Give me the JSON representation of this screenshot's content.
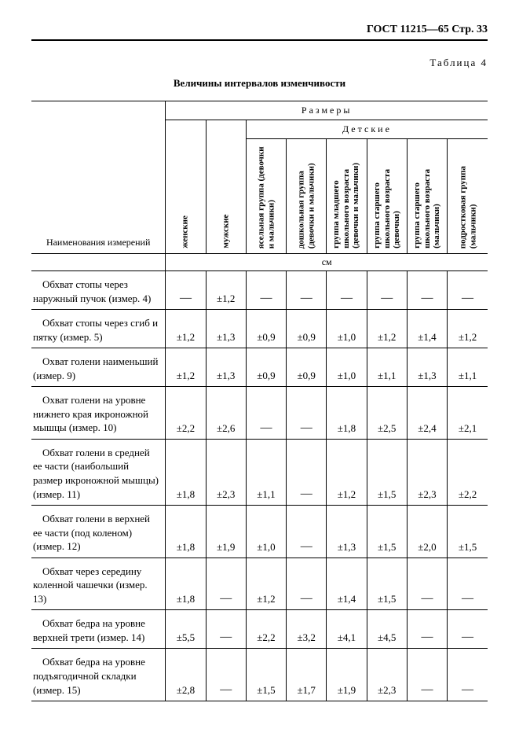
{
  "header": "ГОСТ 11215—65 Стр. 33",
  "table_label": "Таблица 4",
  "caption": "Величины интервалов изменчивости",
  "group_top": "Размеры",
  "group_child": "Детские",
  "name_header": "Наименования измерений",
  "unit": "см",
  "columns": [
    "женские",
    "мужские",
    "ясельная группа (девочки и мальчики)",
    "дошкольная группа (девочки и мальчики)",
    "группа младшего школьного возраста (девочки и мальчики)",
    "группа старшего школьного возраста (девочки)",
    "группа старшего школьного возраста (мальчики)",
    "подростковая группа (мальчики)"
  ],
  "rows": [
    {
      "label": "Обхват стопы через наружный пучок (измер. 4)",
      "vals": [
        "—",
        "±1,2",
        "—",
        "—",
        "—",
        "—",
        "—",
        "—"
      ]
    },
    {
      "label": "Обхват стопы через сгиб и пятку (измер. 5)",
      "vals": [
        "±1,2",
        "±1,3",
        "±0,9",
        "±0,9",
        "±1,0",
        "±1,2",
        "±1,4",
        "±1,2"
      ]
    },
    {
      "label": "Охват голени наименьший (измер. 9)",
      "vals": [
        "±1,2",
        "±1,3",
        "±0,9",
        "±0,9",
        "±1,0",
        "±1,1",
        "±1,3",
        "±1,1"
      ]
    },
    {
      "label": "Охват голени на уровне нижнего края икроножной мышцы (измер. 10)",
      "vals": [
        "±2,2",
        "±2,6",
        "—",
        "—",
        "±1,8",
        "±2,5",
        "±2,4",
        "±2,1"
      ]
    },
    {
      "label": "Обхват голени в средней ее части (наибольший размер икроножной мышцы) (измер. 11)",
      "vals": [
        "±1,8",
        "±2,3",
        "±1,1",
        "—",
        "±1,2",
        "±1,5",
        "±2,3",
        "±2,2"
      ]
    },
    {
      "label": "Обхват голени в верхней ее части (под коленом) (измер. 12)",
      "vals": [
        "±1,8",
        "±1,9",
        "±1,0",
        "—",
        "±1,3",
        "±1,5",
        "±2,0",
        "±1,5"
      ]
    },
    {
      "label": "Обхват через середину коленной чашечки (измер. 13)",
      "vals": [
        "±1,8",
        "—",
        "±1,2",
        "—",
        "±1,4",
        "±1,5",
        "—",
        "—"
      ]
    },
    {
      "label": "Обхват бедра на уровне верхней трети (измер. 14)",
      "vals": [
        "±5,5",
        "—",
        "±2,2",
        "±3,2",
        "±4,1",
        "±4,5",
        "—",
        "—"
      ]
    },
    {
      "label": "Обхват бедра на уровне подъягодичной складки (измер. 15)",
      "vals": [
        "±2,8",
        "—",
        "±1,5",
        "±1,7",
        "±1,9",
        "±2,3",
        "—",
        "—"
      ]
    }
  ]
}
